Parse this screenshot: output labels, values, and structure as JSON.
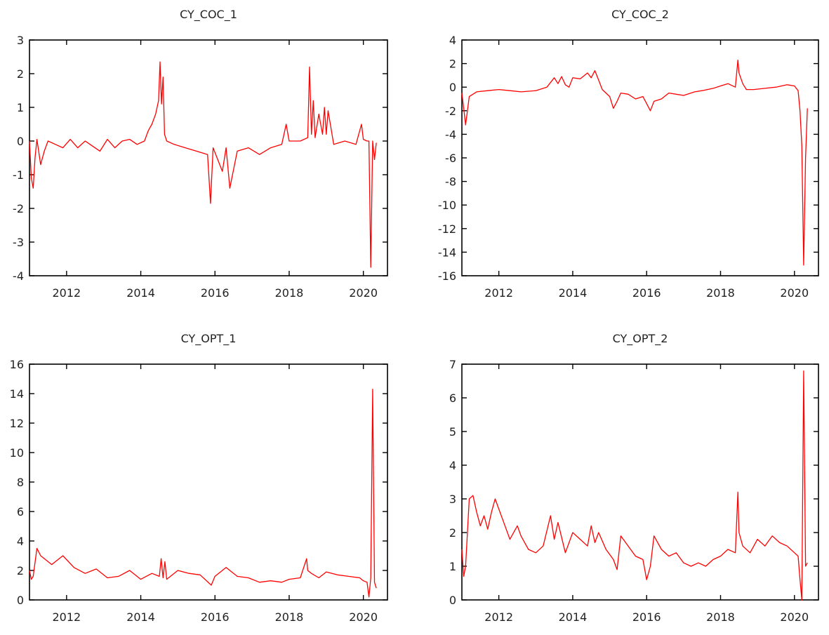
{
  "colors": {
    "series": "#ff0000",
    "axis": "#000000",
    "text": "#222222"
  },
  "chart_data": [
    {
      "type": "line",
      "title": "CY_COC_1",
      "xlabel": "",
      "ylabel": "",
      "xlim": [
        2011.0,
        2020.65
      ],
      "ylim": [
        -4,
        3
      ],
      "xticks": [
        2012,
        2014,
        2016,
        2018,
        2020
      ],
      "yticks": [
        -4,
        -3,
        -2,
        -1,
        0,
        1,
        2,
        3
      ],
      "grid": false,
      "series": [
        {
          "x": [
            2011.0,
            2011.05,
            2011.1,
            2011.15,
            2011.2,
            2011.3,
            2011.4,
            2011.5,
            2011.7,
            2011.9,
            2012.1,
            2012.3,
            2012.5,
            2012.7,
            2012.9,
            2013.1,
            2013.3,
            2013.5,
            2013.7,
            2013.9,
            2014.1,
            2014.2,
            2014.3,
            2014.4,
            2014.48,
            2014.52,
            2014.56,
            2014.6,
            2014.64,
            2014.7,
            2014.9,
            2015.2,
            2015.5,
            2015.8,
            2015.88,
            2015.95,
            2016.2,
            2016.3,
            2016.4,
            2016.6,
            2016.9,
            2017.2,
            2017.5,
            2017.8,
            2017.92,
            2018.0,
            2018.3,
            2018.5,
            2018.55,
            2018.6,
            2018.65,
            2018.7,
            2018.8,
            2018.9,
            2018.95,
            2019.0,
            2019.05,
            2019.2,
            2019.5,
            2019.8,
            2019.95,
            2020.0,
            2020.1,
            2020.15,
            2020.2,
            2020.25,
            2020.3,
            2020.35
          ],
          "y": [
            0.0,
            -1.1,
            -1.4,
            -0.5,
            0.05,
            -0.7,
            -0.3,
            0.0,
            -0.1,
            -0.2,
            0.05,
            -0.2,
            0.0,
            -0.15,
            -0.3,
            0.05,
            -0.2,
            0.0,
            0.05,
            -0.1,
            0.0,
            0.3,
            0.5,
            0.8,
            1.2,
            2.35,
            1.1,
            1.9,
            0.2,
            0.0,
            -0.1,
            -0.2,
            -0.3,
            -0.4,
            -1.85,
            -0.2,
            -0.9,
            -0.2,
            -1.4,
            -0.3,
            -0.2,
            -0.4,
            -0.2,
            -0.1,
            0.5,
            0.0,
            0.0,
            0.1,
            2.2,
            0.2,
            1.2,
            0.1,
            0.8,
            0.2,
            1.0,
            0.2,
            0.9,
            -0.1,
            0.0,
            -0.1,
            0.5,
            0.05,
            0.0,
            0.0,
            -3.75,
            0.0,
            -0.55,
            -0.05
          ]
        }
      ]
    },
    {
      "type": "line",
      "title": "CY_COC_2",
      "xlabel": "",
      "ylabel": "",
      "xlim": [
        2011.0,
        2020.65
      ],
      "ylim": [
        -16,
        4
      ],
      "xticks": [
        2012,
        2014,
        2016,
        2018,
        2020
      ],
      "yticks": [
        -16,
        -14,
        -12,
        -10,
        -8,
        -6,
        -4,
        -2,
        0,
        2,
        4
      ],
      "grid": false,
      "series": [
        {
          "x": [
            2011.0,
            2011.05,
            2011.1,
            2011.2,
            2011.4,
            2011.7,
            2012.0,
            2012.3,
            2012.6,
            2013.0,
            2013.3,
            2013.5,
            2013.6,
            2013.7,
            2013.8,
            2013.9,
            2014.0,
            2014.2,
            2014.4,
            2014.5,
            2014.6,
            2014.7,
            2014.8,
            2015.0,
            2015.1,
            2015.2,
            2015.3,
            2015.5,
            2015.7,
            2015.9,
            2016.1,
            2016.2,
            2016.4,
            2016.6,
            2016.8,
            2017.0,
            2017.3,
            2017.5,
            2017.8,
            2018.0,
            2018.2,
            2018.4,
            2018.47,
            2018.5,
            2018.6,
            2018.7,
            2018.9,
            2019.2,
            2019.5,
            2019.8,
            2020.0,
            2020.1,
            2020.15,
            2020.2,
            2020.25,
            2020.3,
            2020.35
          ],
          "y": [
            -0.5,
            -1.8,
            -3.2,
            -0.8,
            -0.4,
            -0.3,
            -0.2,
            -0.3,
            -0.4,
            -0.3,
            0.0,
            0.8,
            0.3,
            0.9,
            0.2,
            0.0,
            0.8,
            0.7,
            1.2,
            0.8,
            1.4,
            0.6,
            -0.2,
            -0.8,
            -1.8,
            -1.2,
            -0.5,
            -0.6,
            -1.0,
            -0.8,
            -2.0,
            -1.2,
            -1.0,
            -0.5,
            -0.6,
            -0.7,
            -0.4,
            -0.3,
            -0.1,
            0.1,
            0.3,
            0.0,
            2.3,
            1.2,
            0.3,
            -0.2,
            -0.2,
            -0.1,
            0.0,
            0.2,
            0.1,
            -0.3,
            -2.0,
            -5.0,
            -15.1,
            -6.0,
            -1.8
          ]
        }
      ]
    },
    {
      "type": "line",
      "title": "CY_OPT_1",
      "xlabel": "",
      "ylabel": "",
      "xlim": [
        2011.0,
        2020.65
      ],
      "ylim": [
        0,
        16
      ],
      "xticks": [
        2012,
        2014,
        2016,
        2018,
        2020
      ],
      "yticks": [
        0,
        2,
        4,
        6,
        8,
        10,
        12,
        14,
        16
      ],
      "grid": false,
      "series": [
        {
          "x": [
            2011.0,
            2011.05,
            2011.1,
            2011.2,
            2011.3,
            2011.6,
            2011.9,
            2012.2,
            2012.5,
            2012.8,
            2013.1,
            2013.4,
            2013.7,
            2014.0,
            2014.3,
            2014.5,
            2014.55,
            2014.6,
            2014.65,
            2014.7,
            2014.8,
            2015.0,
            2015.3,
            2015.6,
            2015.9,
            2016.0,
            2016.3,
            2016.6,
            2016.9,
            2017.2,
            2017.5,
            2017.8,
            2018.0,
            2018.3,
            2018.47,
            2018.5,
            2018.6,
            2018.8,
            2019.0,
            2019.3,
            2019.6,
            2019.9,
            2020.0,
            2020.1,
            2020.15,
            2020.2,
            2020.25,
            2020.3,
            2020.35
          ],
          "y": [
            2.0,
            1.4,
            1.6,
            3.5,
            3.0,
            2.4,
            3.0,
            2.2,
            1.8,
            2.1,
            1.5,
            1.6,
            2.0,
            1.4,
            1.8,
            1.6,
            2.8,
            1.5,
            2.6,
            1.4,
            1.6,
            2.0,
            1.8,
            1.7,
            1.0,
            1.6,
            2.2,
            1.6,
            1.5,
            1.2,
            1.3,
            1.2,
            1.4,
            1.5,
            2.8,
            2.0,
            1.8,
            1.5,
            1.9,
            1.7,
            1.6,
            1.5,
            1.3,
            1.2,
            0.2,
            1.5,
            14.3,
            1.2,
            0.8
          ]
        }
      ]
    },
    {
      "type": "line",
      "title": "CY_OPT_2",
      "xlabel": "",
      "ylabel": "",
      "xlim": [
        2011.0,
        2020.65
      ],
      "ylim": [
        0,
        7
      ],
      "xticks": [
        2012,
        2014,
        2016,
        2018,
        2020
      ],
      "yticks": [
        0,
        1,
        2,
        3,
        4,
        5,
        6,
        7
      ],
      "grid": false,
      "series": [
        {
          "x": [
            2011.0,
            2011.05,
            2011.1,
            2011.2,
            2011.3,
            2011.4,
            2011.5,
            2011.6,
            2011.7,
            2011.8,
            2011.9,
            2012.0,
            2012.1,
            2012.3,
            2012.5,
            2012.6,
            2012.8,
            2013.0,
            2013.2,
            2013.4,
            2013.5,
            2013.6,
            2013.8,
            2014.0,
            2014.2,
            2014.4,
            2014.5,
            2014.6,
            2014.7,
            2014.9,
            2015.1,
            2015.2,
            2015.3,
            2015.5,
            2015.7,
            2015.9,
            2016.0,
            2016.1,
            2016.2,
            2016.4,
            2016.6,
            2016.8,
            2017.0,
            2017.2,
            2017.4,
            2017.6,
            2017.8,
            2018.0,
            2018.2,
            2018.4,
            2018.47,
            2018.5,
            2018.6,
            2018.8,
            2019.0,
            2019.2,
            2019.4,
            2019.6,
            2019.8,
            2020.0,
            2020.1,
            2020.15,
            2020.2,
            2020.25,
            2020.3,
            2020.35
          ],
          "y": [
            1.5,
            0.7,
            1.0,
            3.0,
            3.1,
            2.6,
            2.2,
            2.5,
            2.1,
            2.6,
            3.0,
            2.7,
            2.4,
            1.8,
            2.2,
            1.9,
            1.5,
            1.4,
            1.6,
            2.5,
            1.8,
            2.3,
            1.4,
            2.0,
            1.8,
            1.6,
            2.2,
            1.7,
            2.0,
            1.5,
            1.2,
            0.9,
            1.9,
            1.6,
            1.3,
            1.2,
            0.6,
            1.0,
            1.9,
            1.5,
            1.3,
            1.4,
            1.1,
            1.0,
            1.1,
            1.0,
            1.2,
            1.3,
            1.5,
            1.4,
            3.2,
            2.0,
            1.6,
            1.4,
            1.8,
            1.6,
            1.9,
            1.7,
            1.6,
            1.4,
            1.3,
            0.6,
            0.0,
            6.8,
            1.0,
            1.1
          ]
        }
      ]
    }
  ]
}
